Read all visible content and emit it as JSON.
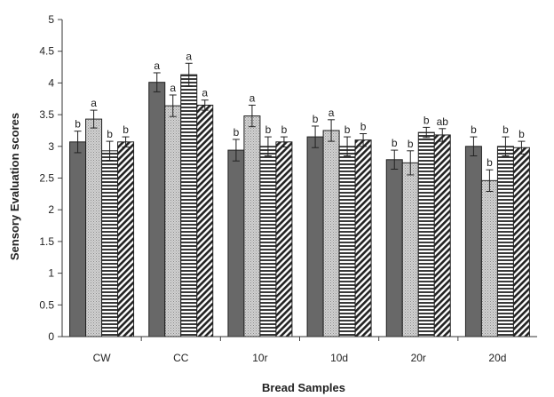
{
  "chart_data": {
    "type": "bar",
    "xlabel": "Bread Samples",
    "ylabel": "Sensory Evaluation scores",
    "ylim": [
      0,
      5
    ],
    "ytick_step": 0.5,
    "yticks": [
      "0",
      "0.5",
      "1",
      "1.5",
      "2",
      "2.5",
      "3",
      "3.5",
      "4",
      "4.5",
      "5"
    ],
    "grid": false,
    "legend": "none",
    "categories": [
      "CW",
      "CC",
      "10r",
      "10d",
      "20r",
      "20d"
    ],
    "series": [
      {
        "pattern": "solid-dark-gray",
        "values": [
          3.07,
          4.01,
          2.94,
          3.15,
          2.79,
          3.0
        ],
        "errors": [
          0.17,
          0.15,
          0.17,
          0.17,
          0.15,
          0.15
        ],
        "labels": [
          "b",
          "a",
          "b",
          "b",
          "b",
          "b"
        ]
      },
      {
        "pattern": "dotted-light-gray",
        "values": [
          3.43,
          3.64,
          3.48,
          3.25,
          2.74,
          2.46
        ],
        "errors": [
          0.14,
          0.17,
          0.17,
          0.17,
          0.19,
          0.17
        ],
        "labels": [
          "a",
          "a",
          "a",
          "a",
          "b",
          "b"
        ]
      },
      {
        "pattern": "horizontal-stripes",
        "values": [
          2.93,
          4.13,
          3.0,
          3.0,
          3.22,
          3.0
        ],
        "errors": [
          0.15,
          0.18,
          0.15,
          0.15,
          0.08,
          0.15
        ],
        "labels": [
          "b",
          "a",
          "b",
          "b",
          "b",
          "b"
        ]
      },
      {
        "pattern": "diagonal-stripes",
        "values": [
          3.07,
          3.65,
          3.07,
          3.1,
          3.18,
          2.98
        ],
        "errors": [
          0.08,
          0.08,
          0.08,
          0.1,
          0.1,
          0.1
        ],
        "labels": [
          "b",
          "a",
          "b",
          "b",
          "ab",
          "b"
        ]
      }
    ]
  }
}
